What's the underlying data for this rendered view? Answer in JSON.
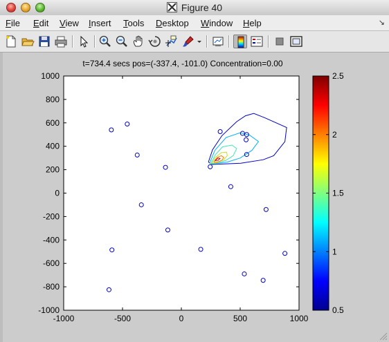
{
  "window": {
    "title": "Figure 40"
  },
  "menu": {
    "items": [
      "File",
      "Edit",
      "View",
      "Insert",
      "Tools",
      "Desktop",
      "Window",
      "Help"
    ],
    "underline": [
      "F",
      "E",
      "V",
      "I",
      "T",
      "D",
      "W",
      "H"
    ],
    "corner_arrow": "↘"
  },
  "toolbar": {
    "icons": [
      "new-file-icon",
      "open-folder-icon",
      "save-icon",
      "print-icon",
      "arrow-select-icon",
      "zoom-in-icon",
      "zoom-out-icon",
      "pan-hand-icon",
      "rotate-3d-icon",
      "data-cursor-icon",
      "brush-icon",
      "link-plot-icon",
      "colorbar-icon",
      "legend-icon",
      "hide-plot-tools-icon",
      "show-plot-tools-icon"
    ]
  },
  "colors": {
    "accent_blue": "#0000c8",
    "titlebar": "#d9d9d9"
  },
  "chart_data": {
    "type": "scatter",
    "title": "t=734.4 secs pos=(-337.4, -101.0)  Concentration=0.00",
    "xlabel": "",
    "ylabel": "",
    "xlim": [
      -1000,
      1000
    ],
    "ylim": [
      -1000,
      1000
    ],
    "xticks": [
      -1000,
      -500,
      0,
      500,
      1000
    ],
    "yticks": [
      1000,
      800,
      600,
      400,
      200,
      0,
      -200,
      -400,
      -600,
      -800,
      -1000
    ],
    "grid": false,
    "points": [
      {
        "x": -460,
        "y": 590
      },
      {
        "x": -595,
        "y": 540
      },
      {
        "x": -375,
        "y": 325
      },
      {
        "x": -135,
        "y": 220
      },
      {
        "x": -340,
        "y": -100
      },
      {
        "x": -115,
        "y": -315
      },
      {
        "x": -590,
        "y": -485
      },
      {
        "x": -615,
        "y": -825
      },
      {
        "x": 165,
        "y": -480
      },
      {
        "x": 330,
        "y": 525
      },
      {
        "x": 520,
        "y": 510
      },
      {
        "x": 555,
        "y": 500
      },
      {
        "x": 550,
        "y": 455
      },
      {
        "x": 555,
        "y": 330
      },
      {
        "x": 245,
        "y": 225
      },
      {
        "x": 420,
        "y": 55
      },
      {
        "x": 720,
        "y": -140
      },
      {
        "x": 880,
        "y": -515
      },
      {
        "x": 535,
        "y": -690
      },
      {
        "x": 695,
        "y": -745
      }
    ],
    "contours": [
      {
        "level": 0.5,
        "color": "#0000c8",
        "points": [
          [
            230,
            265
          ],
          [
            265,
            370
          ],
          [
            345,
            490
          ],
          [
            470,
            610
          ],
          [
            545,
            660
          ],
          [
            615,
            680
          ],
          [
            705,
            645
          ],
          [
            895,
            560
          ],
          [
            880,
            440
          ],
          [
            785,
            320
          ],
          [
            695,
            285
          ],
          [
            505,
            255
          ],
          [
            260,
            245
          ],
          [
            230,
            265
          ]
        ]
      },
      {
        "level": 0.9,
        "color": "#00b0ff",
        "points": [
          [
            240,
            255
          ],
          [
            285,
            365
          ],
          [
            380,
            475
          ],
          [
            500,
            515
          ],
          [
            580,
            495
          ],
          [
            655,
            440
          ],
          [
            600,
            365
          ],
          [
            500,
            300
          ],
          [
            390,
            265
          ],
          [
            270,
            250
          ],
          [
            240,
            255
          ]
        ]
      },
      {
        "level": 1.3,
        "color": "#40e8b0",
        "points": [
          [
            250,
            250
          ],
          [
            290,
            330
          ],
          [
            350,
            395
          ],
          [
            430,
            410
          ],
          [
            470,
            380
          ],
          [
            440,
            320
          ],
          [
            380,
            280
          ],
          [
            300,
            255
          ],
          [
            250,
            250
          ]
        ]
      },
      {
        "level": 1.7,
        "color": "#c8e020",
        "points": [
          [
            260,
            255
          ],
          [
            290,
            305
          ],
          [
            340,
            345
          ],
          [
            385,
            350
          ],
          [
            390,
            320
          ],
          [
            360,
            285
          ],
          [
            300,
            260
          ],
          [
            260,
            255
          ]
        ]
      },
      {
        "level": 2.1,
        "color": "#ff8000",
        "points": [
          [
            275,
            265
          ],
          [
            305,
            305
          ],
          [
            340,
            320
          ],
          [
            360,
            305
          ],
          [
            345,
            280
          ],
          [
            305,
            265
          ],
          [
            275,
            265
          ]
        ]
      },
      {
        "level": 2.3,
        "color": "#d00000",
        "points": [
          [
            285,
            278
          ],
          [
            312,
            300
          ],
          [
            328,
            295
          ],
          [
            312,
            280
          ],
          [
            285,
            278
          ]
        ]
      }
    ],
    "colorbar": {
      "min": 0.5,
      "max": 2.5,
      "ticks": [
        2.5,
        2,
        1.5,
        1,
        0.5
      ],
      "tick_labels": [
        "2.5",
        "2",
        "1.5",
        "1",
        "0.5"
      ],
      "colormap": "jet"
    }
  }
}
